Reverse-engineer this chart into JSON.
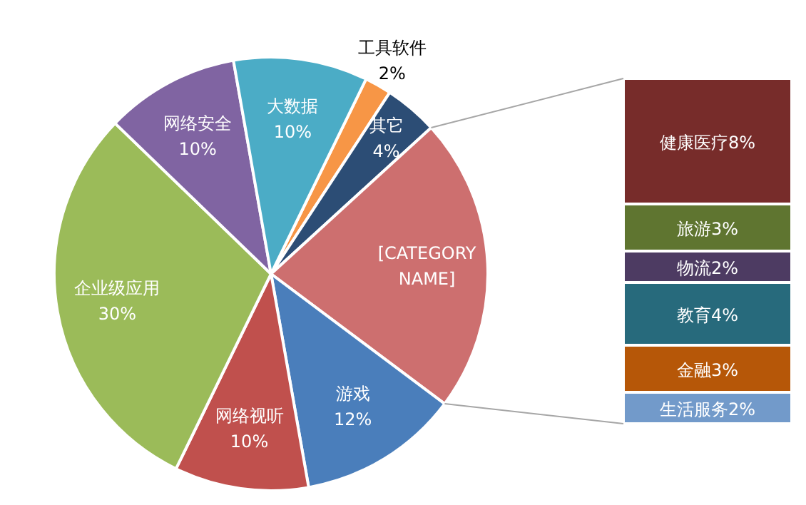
{
  "chart_data": [
    {
      "type": "pie",
      "categories": [
        "工具软件",
        "其它",
        "[CATEGORY NAME]",
        "游戏",
        "网络视听",
        "企业级应用",
        "网络安全",
        "大数据"
      ],
      "values": [
        2,
        4,
        22,
        12,
        10,
        30,
        10,
        10
      ],
      "colors": [
        "#f79646",
        "#2c4d75",
        "#cd6f6f",
        "#4a7ebb",
        "#c0504d",
        "#9bbb59",
        "#8064a2",
        "#4bacc6"
      ],
      "value_labels": [
        "2%",
        "4%",
        null,
        "12%",
        "10%",
        "30%",
        "10%",
        "10%"
      ]
    },
    {
      "type": "bar",
      "stacked": true,
      "categories": [
        null
      ],
      "series": [
        {
          "name": "生活服务",
          "color": "#729aca",
          "values": [
            2
          ],
          "value_labels": [
            "2%"
          ]
        },
        {
          "name": "金融",
          "color": "#b65708",
          "values": [
            3
          ],
          "value_labels": [
            "3%"
          ]
        },
        {
          "name": "教育",
          "color": "#276a7c",
          "values": [
            4
          ],
          "value_labels": [
            "4%"
          ]
        },
        {
          "name": "物流",
          "color": "#4d3b62",
          "values": [
            2
          ],
          "value_labels": [
            "2%"
          ]
        },
        {
          "name": "旅游",
          "color": "#5f7530",
          "values": [
            3
          ],
          "value_labels": [
            "3%"
          ]
        },
        {
          "name": "健康医疗",
          "color": "#772c2a",
          "values": [
            8
          ],
          "value_labels": [
            "8%"
          ]
        }
      ]
    }
  ]
}
